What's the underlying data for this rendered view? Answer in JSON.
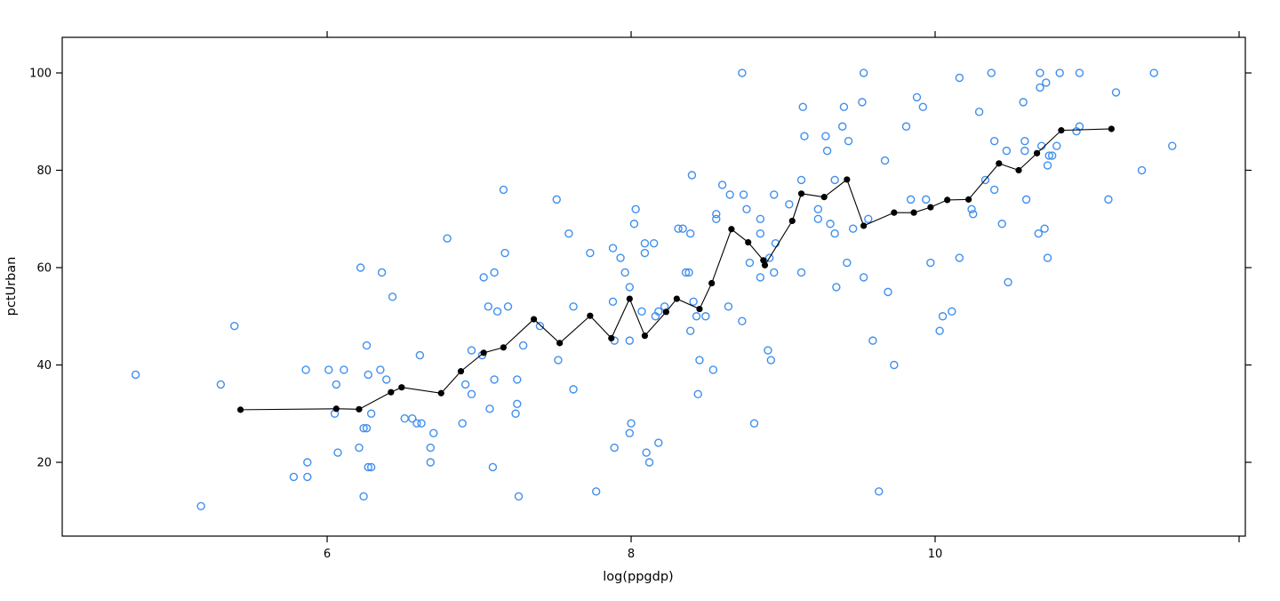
{
  "figure": {
    "background": "#ffffff",
    "plot_border_color": "#000000"
  },
  "chart_data": {
    "type": "scatter",
    "title": "",
    "xlabel": "log(ppgdp)",
    "ylabel": "pctUrban",
    "xlim": [
      4.257,
      12.041
    ],
    "ylim": [
      4.84,
      107.31
    ],
    "x_ticks_labeled": [
      6,
      8,
      10
    ],
    "x_ticks_unlabeled": [
      12
    ],
    "y_ticks_labeled": [
      20,
      40,
      60,
      80,
      100
    ],
    "grid": "off",
    "legend": "none",
    "ticks_on_all_sides": true,
    "series": [
      {
        "name": "observations",
        "type": "points",
        "marker": "open-circle",
        "color": "#3f8fef",
        "marker_radius": 4,
        "points": [
          [
            4.74,
            38
          ],
          [
            5.17,
            11
          ],
          [
            5.3,
            36
          ],
          [
            5.39,
            48
          ],
          [
            5.78,
            17
          ],
          [
            5.86,
            39
          ],
          [
            5.87,
            17
          ],
          [
            5.87,
            20
          ],
          [
            6.01,
            39
          ],
          [
            6.05,
            30
          ],
          [
            6.06,
            36
          ],
          [
            6.07,
            22
          ],
          [
            6.11,
            39
          ],
          [
            6.21,
            23
          ],
          [
            6.22,
            60
          ],
          [
            6.24,
            27
          ],
          [
            6.24,
            13
          ],
          [
            6.26,
            44
          ],
          [
            6.26,
            27
          ],
          [
            6.27,
            38
          ],
          [
            6.27,
            19
          ],
          [
            6.29,
            30
          ],
          [
            6.29,
            19
          ],
          [
            6.35,
            39
          ],
          [
            6.36,
            59
          ],
          [
            6.39,
            37
          ],
          [
            6.43,
            54
          ],
          [
            6.51,
            29
          ],
          [
            6.56,
            29
          ],
          [
            6.59,
            28
          ],
          [
            6.61,
            42
          ],
          [
            6.62,
            28
          ],
          [
            6.68,
            23
          ],
          [
            6.68,
            20
          ],
          [
            6.7,
            26
          ],
          [
            6.79,
            66
          ],
          [
            6.89,
            28
          ],
          [
            6.91,
            36
          ],
          [
            6.95,
            43
          ],
          [
            6.95,
            34
          ],
          [
            7.02,
            42
          ],
          [
            7.03,
            58
          ],
          [
            7.06,
            52
          ],
          [
            7.07,
            31
          ],
          [
            7.09,
            19
          ],
          [
            7.1,
            59
          ],
          [
            7.1,
            37
          ],
          [
            7.12,
            51
          ],
          [
            7.16,
            76
          ],
          [
            7.17,
            63
          ],
          [
            7.19,
            52
          ],
          [
            7.24,
            30
          ],
          [
            7.25,
            37
          ],
          [
            7.25,
            32
          ],
          [
            7.26,
            13
          ],
          [
            7.29,
            44
          ],
          [
            7.4,
            48
          ],
          [
            7.51,
            74
          ],
          [
            7.52,
            41
          ],
          [
            7.59,
            67
          ],
          [
            7.62,
            52
          ],
          [
            7.62,
            35
          ],
          [
            7.73,
            63
          ],
          [
            7.77,
            14
          ],
          [
            7.88,
            64
          ],
          [
            7.88,
            53
          ],
          [
            7.89,
            45
          ],
          [
            7.89,
            23
          ],
          [
            7.93,
            62
          ],
          [
            7.96,
            59
          ],
          [
            7.99,
            56
          ],
          [
            7.99,
            45
          ],
          [
            7.99,
            26
          ],
          [
            8.0,
            28
          ],
          [
            8.02,
            69
          ],
          [
            8.03,
            72
          ],
          [
            8.07,
            51
          ],
          [
            8.09,
            65
          ],
          [
            8.09,
            63
          ],
          [
            8.1,
            22
          ],
          [
            8.12,
            20
          ],
          [
            8.15,
            65
          ],
          [
            8.16,
            50
          ],
          [
            8.18,
            51
          ],
          [
            8.18,
            24
          ],
          [
            8.22,
            52
          ],
          [
            8.31,
            68
          ],
          [
            8.34,
            68
          ],
          [
            8.36,
            59
          ],
          [
            8.38,
            59
          ],
          [
            8.39,
            67
          ],
          [
            8.39,
            47
          ],
          [
            8.4,
            79
          ],
          [
            8.41,
            53
          ],
          [
            8.43,
            50
          ],
          [
            8.44,
            34
          ],
          [
            8.45,
            41
          ],
          [
            8.49,
            50
          ],
          [
            8.54,
            39
          ],
          [
            8.56,
            71
          ],
          [
            8.56,
            70
          ],
          [
            8.6,
            77
          ],
          [
            8.64,
            52
          ],
          [
            8.65,
            75
          ],
          [
            8.73,
            100
          ],
          [
            8.73,
            49
          ],
          [
            8.74,
            75
          ],
          [
            8.76,
            72
          ],
          [
            8.78,
            61
          ],
          [
            8.81,
            28
          ],
          [
            8.85,
            70
          ],
          [
            8.85,
            67
          ],
          [
            8.85,
            58
          ],
          [
            8.9,
            43
          ],
          [
            8.91,
            62
          ],
          [
            8.92,
            41
          ],
          [
            8.94,
            75
          ],
          [
            8.94,
            59
          ],
          [
            8.95,
            65
          ],
          [
            9.04,
            73
          ],
          [
            9.12,
            78
          ],
          [
            9.12,
            59
          ],
          [
            9.13,
            93
          ],
          [
            9.14,
            87
          ],
          [
            9.23,
            72
          ],
          [
            9.23,
            70
          ],
          [
            9.28,
            87
          ],
          [
            9.29,
            84
          ],
          [
            9.31,
            69
          ],
          [
            9.34,
            78
          ],
          [
            9.34,
            67
          ],
          [
            9.35,
            56
          ],
          [
            9.39,
            89
          ],
          [
            9.4,
            93
          ],
          [
            9.42,
            61
          ],
          [
            9.43,
            86
          ],
          [
            9.46,
            68
          ],
          [
            9.52,
            94
          ],
          [
            9.53,
            100
          ],
          [
            9.53,
            58
          ],
          [
            9.56,
            70
          ],
          [
            9.59,
            45
          ],
          [
            9.63,
            14
          ],
          [
            9.67,
            82
          ],
          [
            9.69,
            55
          ],
          [
            9.73,
            40
          ],
          [
            9.81,
            89
          ],
          [
            9.84,
            74
          ],
          [
            9.88,
            95
          ],
          [
            9.92,
            93
          ],
          [
            9.94,
            74
          ],
          [
            9.97,
            61
          ],
          [
            10.03,
            47
          ],
          [
            10.05,
            50
          ],
          [
            10.11,
            51
          ],
          [
            10.16,
            99
          ],
          [
            10.16,
            62
          ],
          [
            10.24,
            72
          ],
          [
            10.25,
            71
          ],
          [
            10.29,
            92
          ],
          [
            10.33,
            78
          ],
          [
            10.37,
            100
          ],
          [
            10.39,
            86
          ],
          [
            10.39,
            76
          ],
          [
            10.44,
            69
          ],
          [
            10.47,
            84
          ],
          [
            10.48,
            57
          ],
          [
            10.58,
            94
          ],
          [
            10.59,
            86
          ],
          [
            10.59,
            84
          ],
          [
            10.6,
            74
          ],
          [
            10.68,
            67
          ],
          [
            10.69,
            100
          ],
          [
            10.69,
            97
          ],
          [
            10.7,
            85
          ],
          [
            10.72,
            68
          ],
          [
            10.73,
            98
          ],
          [
            10.74,
            81
          ],
          [
            10.74,
            62
          ],
          [
            10.75,
            83
          ],
          [
            10.77,
            83
          ],
          [
            10.8,
            85
          ],
          [
            10.82,
            100
          ],
          [
            10.93,
            88
          ],
          [
            10.95,
            100
          ],
          [
            10.95,
            89
          ],
          [
            11.14,
            74
          ],
          [
            11.19,
            96
          ],
          [
            11.36,
            80
          ],
          [
            11.44,
            100
          ],
          [
            11.56,
            85
          ]
        ]
      },
      {
        "name": "smooth-fit",
        "type": "line-with-points",
        "marker": "filled-circle",
        "color": "#000000",
        "marker_radius": 3.6,
        "line_width": 1.1,
        "points": [
          [
            5.43,
            30.8
          ],
          [
            6.06,
            31.0
          ],
          [
            6.21,
            30.9
          ],
          [
            6.42,
            34.4
          ],
          [
            6.49,
            35.4
          ],
          [
            6.75,
            34.2
          ],
          [
            6.88,
            38.7
          ],
          [
            7.03,
            42.5
          ],
          [
            7.16,
            43.6
          ],
          [
            7.36,
            49.4
          ],
          [
            7.53,
            44.5
          ],
          [
            7.73,
            50.1
          ],
          [
            7.87,
            45.5
          ],
          [
            7.99,
            53.6
          ],
          [
            8.09,
            46.0
          ],
          [
            8.23,
            50.9
          ],
          [
            8.3,
            53.6
          ],
          [
            8.45,
            51.5
          ],
          [
            8.53,
            56.8
          ],
          [
            8.66,
            67.9
          ],
          [
            8.77,
            65.2
          ],
          [
            8.87,
            61.5
          ],
          [
            8.88,
            60.5
          ],
          [
            9.06,
            69.6
          ],
          [
            9.12,
            75.2
          ],
          [
            9.27,
            74.5
          ],
          [
            9.42,
            78.1
          ],
          [
            9.53,
            68.6
          ],
          [
            9.73,
            71.3
          ],
          [
            9.86,
            71.3
          ],
          [
            9.97,
            72.4
          ],
          [
            10.08,
            73.9
          ],
          [
            10.22,
            74.0
          ],
          [
            10.42,
            81.4
          ],
          [
            10.55,
            80.0
          ],
          [
            10.67,
            83.5
          ],
          [
            10.83,
            88.2
          ],
          [
            11.16,
            88.5
          ]
        ]
      }
    ]
  }
}
